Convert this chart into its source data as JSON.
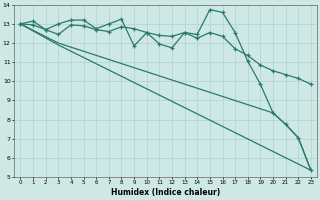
{
  "line1_x": [
    0,
    1,
    2,
    3,
    4,
    5,
    6,
    7,
    8,
    9,
    10,
    11,
    12,
    13,
    14,
    15,
    16,
    17,
    18,
    19,
    20,
    21,
    22,
    23
  ],
  "line1_y": [
    13.0,
    13.15,
    12.7,
    13.0,
    13.2,
    13.2,
    12.75,
    13.0,
    13.25,
    11.85,
    12.55,
    11.95,
    11.75,
    12.55,
    12.45,
    13.75,
    13.6,
    12.55,
    11.05,
    9.85,
    8.35,
    7.75,
    7.05,
    5.35
  ],
  "line2_x": [
    0,
    1,
    2,
    3,
    4,
    5,
    6,
    7,
    8,
    9,
    10,
    11,
    12,
    13,
    14,
    15,
    16,
    17,
    18,
    19,
    20,
    21,
    22,
    23
  ],
  "line2_y": [
    13.0,
    12.95,
    12.7,
    12.45,
    12.95,
    12.9,
    12.7,
    12.6,
    12.85,
    12.75,
    12.55,
    12.4,
    12.35,
    12.55,
    12.25,
    12.55,
    12.35,
    11.7,
    11.35,
    10.85,
    10.55,
    10.35,
    10.15,
    9.85
  ],
  "line3_x": [
    0,
    3,
    20,
    21,
    22,
    23
  ],
  "line3_y": [
    13.0,
    12.0,
    8.35,
    7.75,
    7.05,
    5.35
  ],
  "line4_x": [
    0,
    3,
    23
  ],
  "line4_y": [
    13.0,
    11.9,
    5.35
  ],
  "color": "#2a7a69",
  "bg_color": "#cee8e5",
  "grid_color": "#b8d8d4",
  "xlim": [
    -0.5,
    23.5
  ],
  "ylim": [
    5,
    14
  ],
  "xlabel": "Humidex (Indice chaleur)",
  "xticks": [
    0,
    1,
    2,
    3,
    4,
    5,
    6,
    7,
    8,
    9,
    10,
    11,
    12,
    13,
    14,
    15,
    16,
    17,
    18,
    19,
    20,
    21,
    22,
    23
  ],
  "yticks": [
    5,
    6,
    7,
    8,
    9,
    10,
    11,
    12,
    13,
    14
  ]
}
